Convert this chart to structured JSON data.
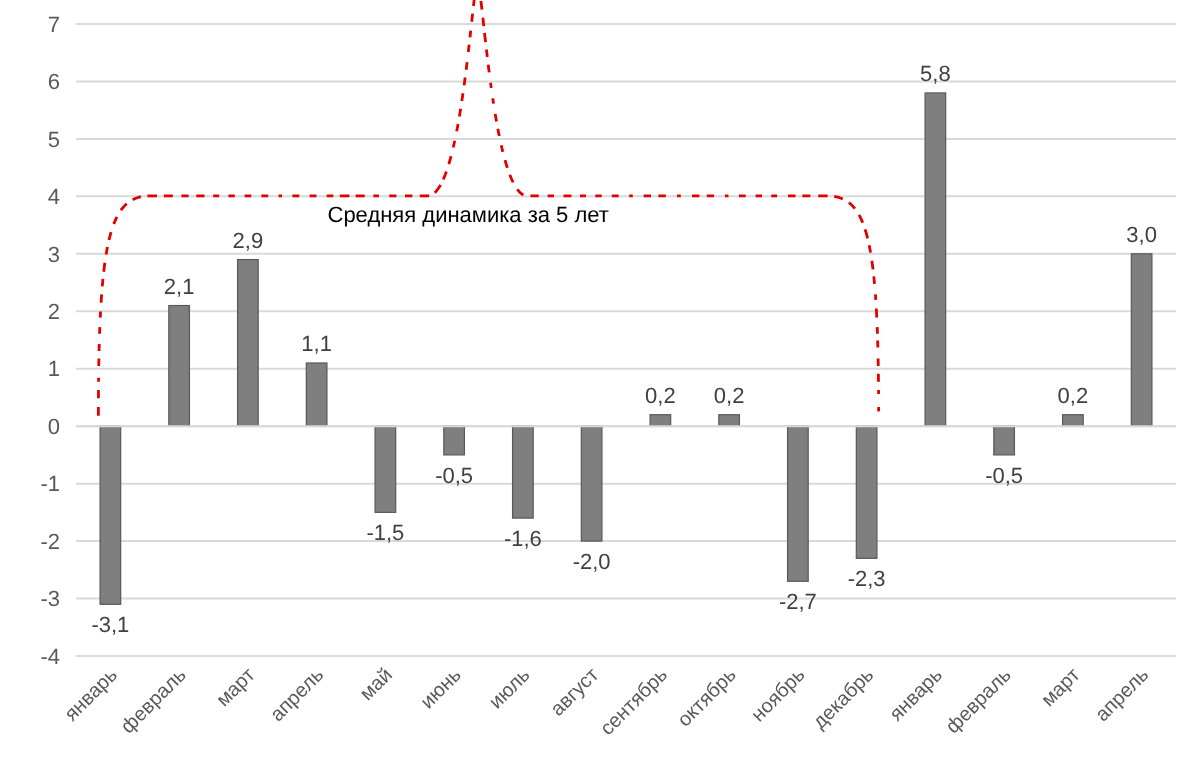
{
  "chart_data": {
    "type": "bar",
    "categories": [
      "январь",
      "февраль",
      "март",
      "апрель",
      "май",
      "июнь",
      "июль",
      "август",
      "сентябрь",
      "октябрь",
      "ноябрь",
      "декабрь",
      "январь",
      "февраль",
      "март",
      "апрель"
    ],
    "values": [
      -3.1,
      2.1,
      2.9,
      1.1,
      -1.5,
      -0.5,
      -1.6,
      -2.0,
      0.2,
      0.2,
      -2.7,
      -2.3,
      5.8,
      -0.5,
      0.2,
      3.0
    ],
    "value_labels": [
      "-3,1",
      "2,1",
      "2,9",
      "1,1",
      "-1,5",
      "-0,5",
      "-1,6",
      "-2,0",
      "0,2",
      "0,2",
      "-2,7",
      "-2,3",
      "5,8",
      "-0,5",
      "0,2",
      "3,0"
    ],
    "color": "#7f7f7f",
    "ylim": [
      -4,
      7
    ],
    "yticks": [
      -4,
      -3,
      -2,
      -1,
      0,
      1,
      2,
      3,
      4,
      5,
      6,
      7
    ],
    "grid": "y",
    "annotations": [
      "Средняя динамика за 5 лет"
    ]
  }
}
